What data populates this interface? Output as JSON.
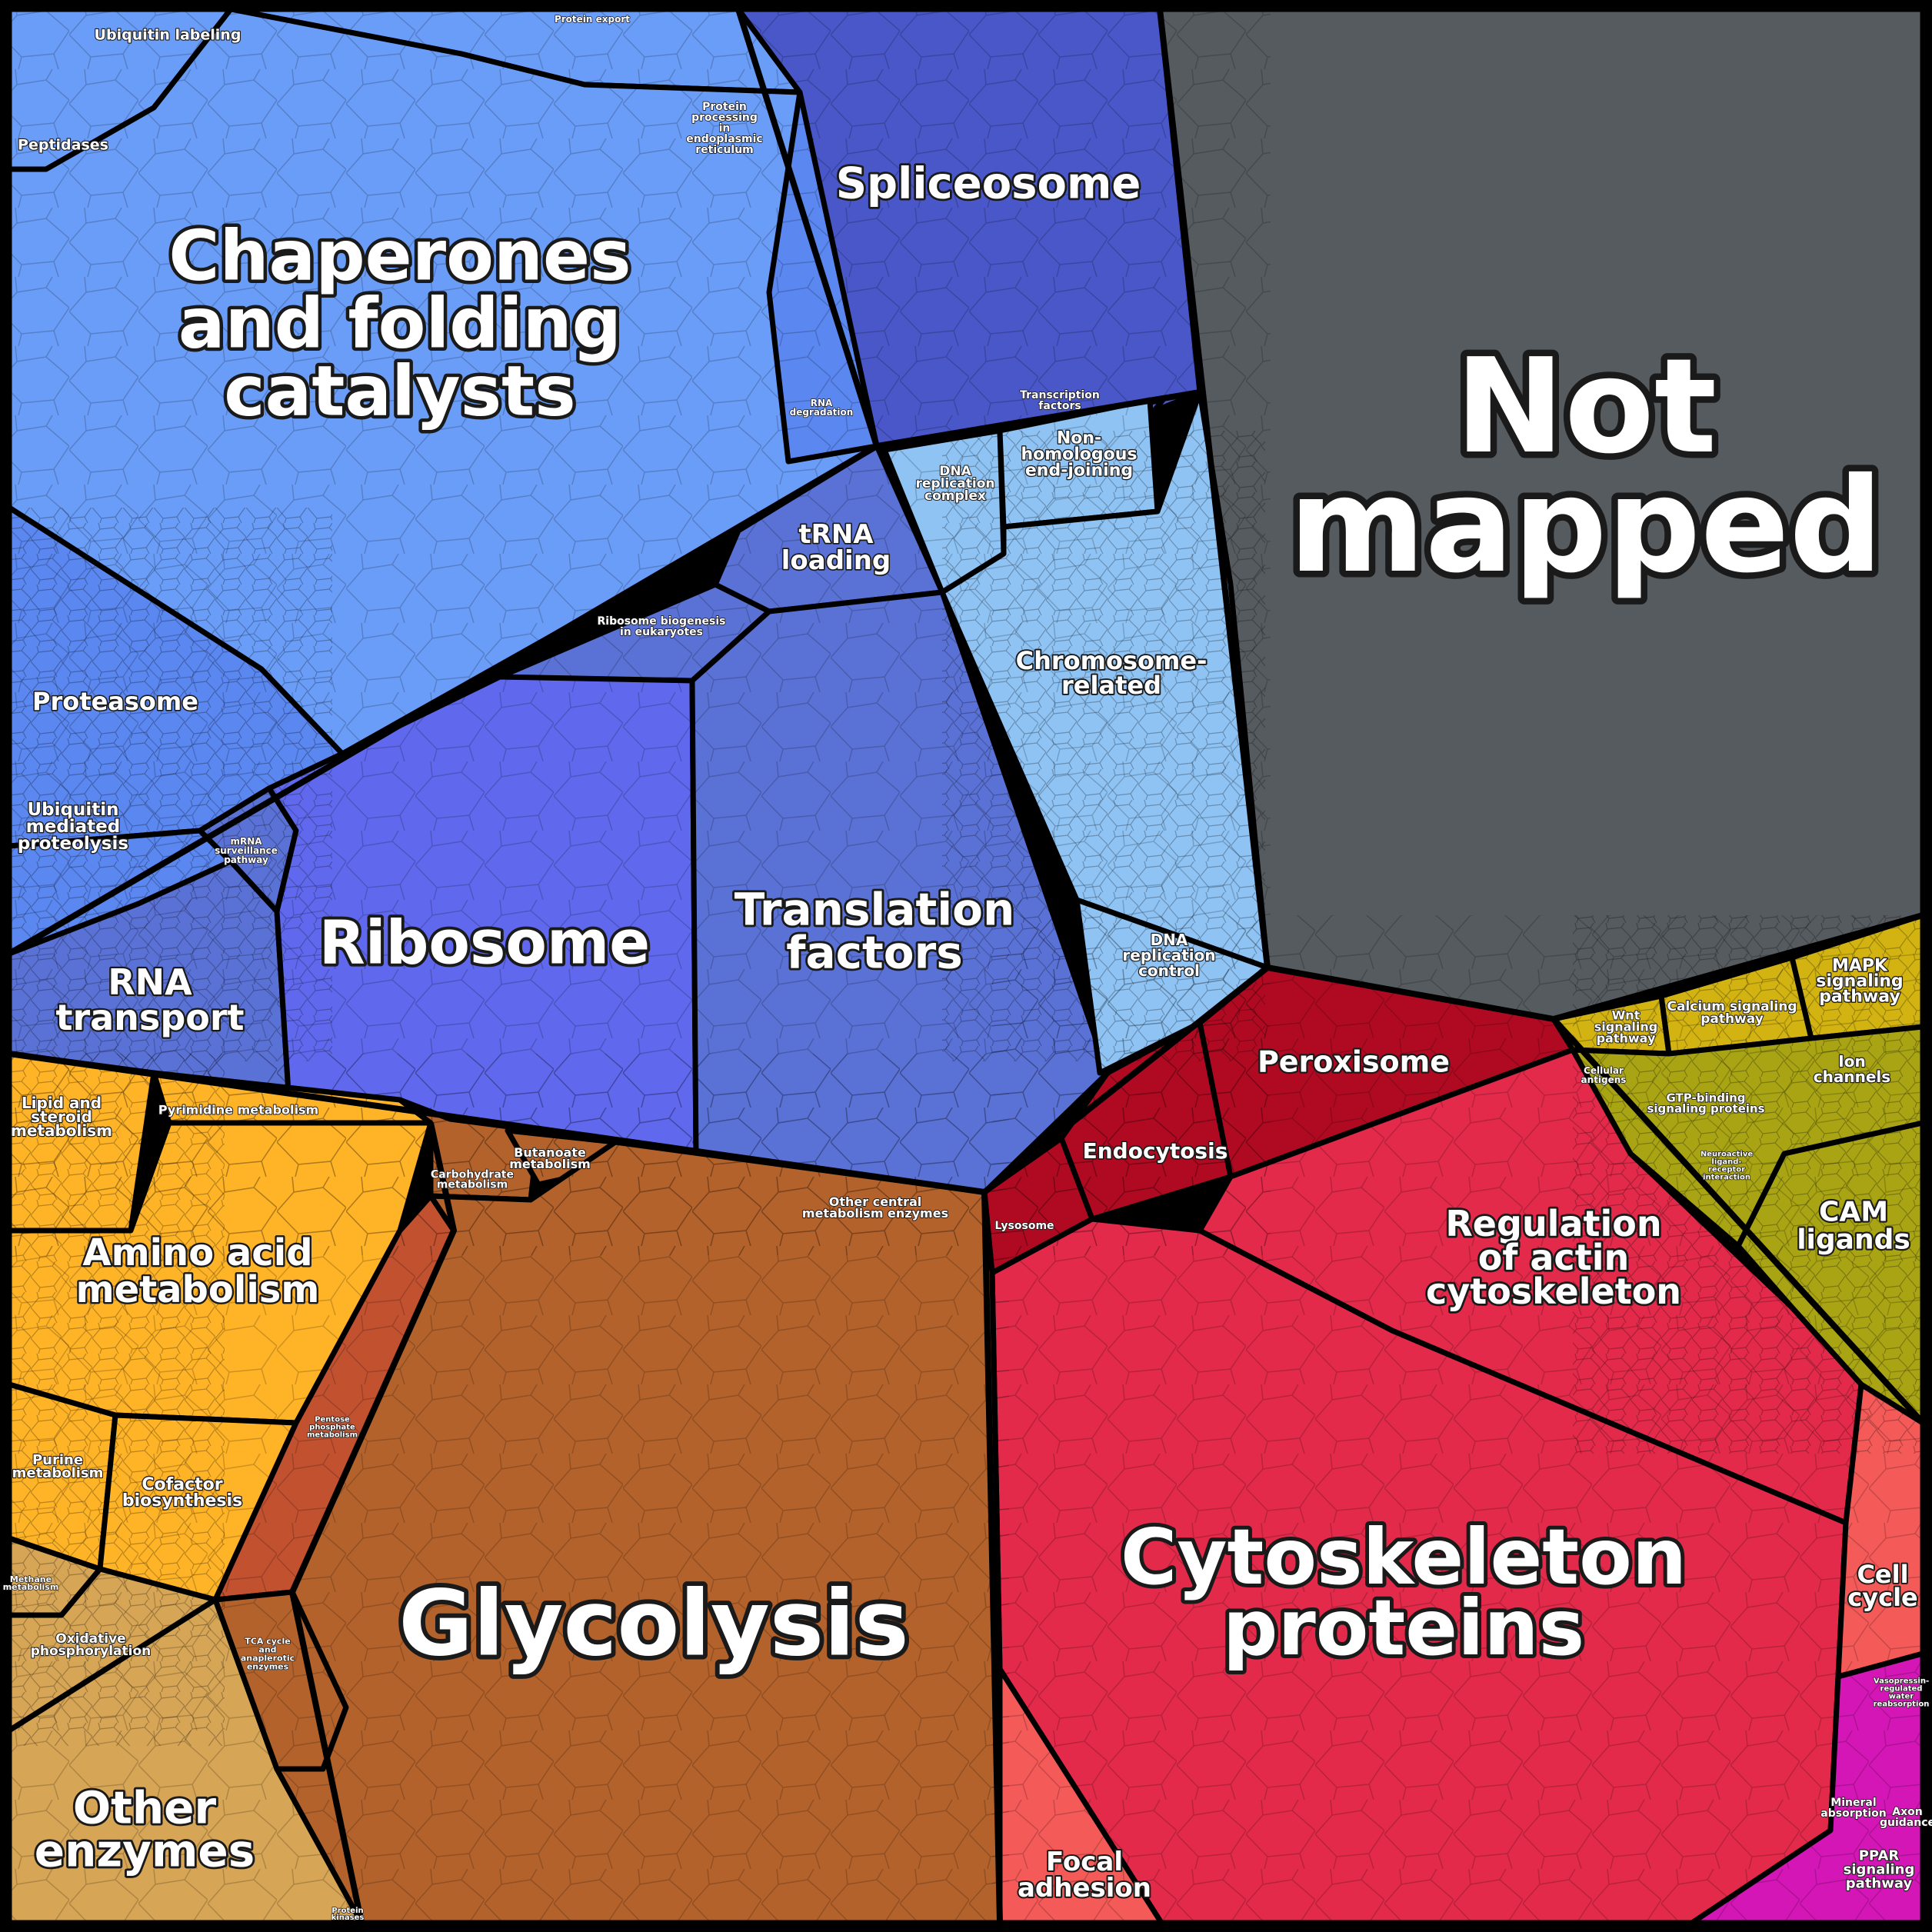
{
  "labels": {
    "not_mapped": [
      "Not",
      "mapped"
    ],
    "chaperones": [
      "Chaperones",
      "and folding",
      "catalysts"
    ],
    "spliceosome": [
      "Spliceosome"
    ],
    "proteasome": [
      "Proteasome"
    ],
    "ubiquitin_labeling": [
      "Ubiquitin labeling"
    ],
    "peptidases": [
      "Peptidases"
    ],
    "protein_export": [
      "Protein export"
    ],
    "protein_processing_er": [
      "Protein",
      "processing",
      "in",
      "endoplasmic",
      "reticulum"
    ],
    "rna_degradation": [
      "RNA",
      "degradation"
    ],
    "trna_loading": [
      "tRNA",
      "loading"
    ],
    "ribosome_biogenesis": [
      "Ribosome biogenesis",
      "in eukaryotes"
    ],
    "ubiquitin_proteolysis": [
      "Ubiquitin",
      "mediated",
      "proteolysis"
    ],
    "mrna_surveillance": [
      "mRNA",
      "surveillance",
      "pathway"
    ],
    "ribosome": [
      "Ribosome"
    ],
    "translation_factors": [
      "Translation",
      "factors"
    ],
    "rna_transport": [
      "RNA",
      "transport"
    ],
    "transcription_factors": [
      "Transcription",
      "factors"
    ],
    "nhej": [
      "Non-",
      "homologous",
      "end-joining"
    ],
    "dna_replication_complex": [
      "DNA",
      "replication",
      "complex"
    ],
    "chromosome_related": [
      "Chromosome-",
      "related"
    ],
    "dna_replication_control": [
      "DNA",
      "replication",
      "control"
    ],
    "peroxisome": [
      "Peroxisome"
    ],
    "endocytosis": [
      "Endocytosis"
    ],
    "lysosome": [
      "Lysosome"
    ],
    "regulation_actin": [
      "Regulation",
      "of actin",
      "cytoskeleton"
    ],
    "cytoskeleton_proteins": [
      "Cytoskeleton",
      "proteins"
    ],
    "focal_adhesion": [
      "Focal",
      "adhesion"
    ],
    "cell_cycle": [
      "Cell",
      "cycle"
    ],
    "wnt": [
      "Wnt",
      "signaling",
      "pathway"
    ],
    "calcium": [
      "Calcium signaling",
      "pathway"
    ],
    "mapk": [
      "MAPK",
      "signaling",
      "pathway"
    ],
    "cellular_antigens": [
      "Cellular",
      "antigens"
    ],
    "gtp_binding": [
      "GTP-binding",
      "signaling proteins"
    ],
    "ion_channels": [
      "Ion",
      "channels"
    ],
    "neuroactive": [
      "Neuroactive",
      "ligand-",
      "receptor",
      "interaction"
    ],
    "cam_ligands": [
      "CAM",
      "ligands"
    ],
    "mineral_absorption": [
      "Mineral",
      "absorption"
    ],
    "axon_guidance": [
      "Axon",
      "guidance"
    ],
    "ppar": [
      "PPAR",
      "signaling",
      "pathway"
    ],
    "vasopressin": [
      "Vasopressin-",
      "regulated",
      "water",
      "reabsorption"
    ],
    "lipid_steroid": [
      "Lipid and",
      "steroid",
      "metabolism"
    ],
    "pyrimidine": [
      "Pyrimidine metabolism"
    ],
    "amino_acid": [
      "Amino acid",
      "metabolism"
    ],
    "purine": [
      "Purine",
      "metabolism"
    ],
    "cofactor": [
      "Cofactor",
      "biosynthesis"
    ],
    "methane": [
      "Methane",
      "metabolism"
    ],
    "oxphos": [
      "Oxidative",
      "phosphorylation"
    ],
    "other_enzymes": [
      "Other",
      "enzymes"
    ],
    "carbohydrate": [
      "Carbohydrate",
      "metabolism"
    ],
    "butanoate": [
      "Butanoate",
      "metabolism"
    ],
    "other_central": [
      "Other central",
      "metabolism enzymes"
    ],
    "pentose_phosphate": [
      "Pentose",
      "phosphate",
      "metabolism"
    ],
    "tca_cycle": [
      "TCA cycle",
      "and",
      "anaplerotic",
      "enzymes"
    ],
    "glycolysis": [
      "Glycolysis"
    ],
    "protein_kinases": [
      "Protein",
      "kinases"
    ]
  },
  "colors": {
    "not_mapped": "#565b60",
    "blue_light": "#6a9df8",
    "blue_mid": "#5a87f0",
    "blue_deep": "#4957c9",
    "blue_ribosome": "#6069ee",
    "blue_translation": "#5a72d6",
    "sky": "#8ec3f4",
    "yellow": "#d2b311",
    "olive": "#a8a414",
    "red_dark": "#b00a22",
    "red": "#e32a4a",
    "salmon": "#f45a58",
    "magenta": "#d516b7",
    "orange": "#ffb327",
    "brown": "#b3622b",
    "tan": "#d6a555",
    "rust": "#c25130"
  }
}
